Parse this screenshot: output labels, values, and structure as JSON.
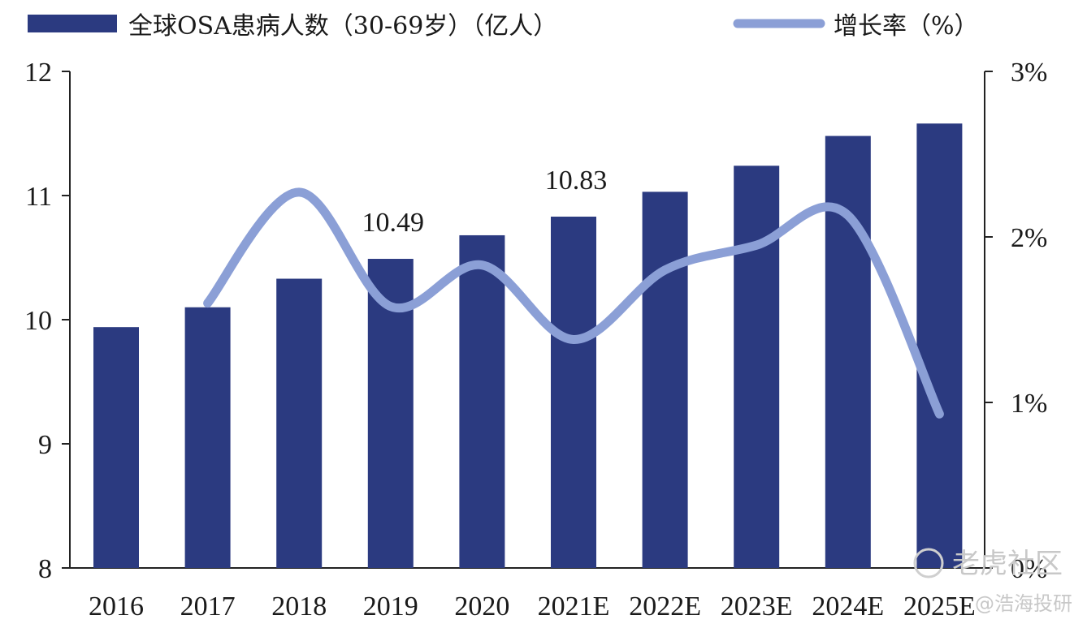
{
  "chart_data": {
    "type": "bar",
    "categories": [
      "2016",
      "2017",
      "2018",
      "2019",
      "2020",
      "2021E",
      "2022E",
      "2023E",
      "2024E",
      "2025E"
    ],
    "series": [
      {
        "name": "全球OSA患病人数（30-69岁）（亿人）",
        "type": "bar",
        "axis": "left",
        "color": "#2b3a80",
        "values": [
          9.94,
          10.1,
          10.33,
          10.49,
          10.68,
          10.83,
          11.03,
          11.24,
          11.48,
          11.58
        ]
      },
      {
        "name": "增长率（%）",
        "type": "line",
        "axis": "right",
        "color": "#8b9fd6",
        "values": [
          null,
          1.6,
          2.27,
          1.58,
          1.83,
          1.38,
          1.8,
          1.95,
          2.13,
          0.93
        ]
      }
    ],
    "annotations": [
      {
        "category": "2019",
        "text": "10.49"
      },
      {
        "category": "2021E",
        "text": "10.83"
      }
    ],
    "y_left": {
      "min": 8,
      "max": 12,
      "ticks": [
        8,
        9,
        10,
        11,
        12
      ]
    },
    "y_right": {
      "min": 0,
      "max": 3,
      "ticks": [
        0,
        1,
        2,
        3
      ],
      "tick_labels": [
        "0%",
        "1%",
        "2%",
        "3%"
      ]
    },
    "title": "",
    "xlabel": "",
    "ylabel": "",
    "legend_position": "top",
    "grid": false
  },
  "watermark": {
    "text": "老虎社区",
    "handle": "@浩海投研"
  }
}
